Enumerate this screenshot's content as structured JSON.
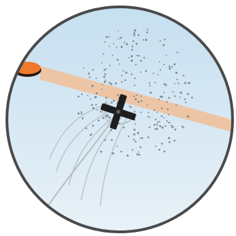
{
  "scene": {
    "colors": {
      "background": "#ffffff",
      "ring": "#4a4a4a",
      "sky_top": "#c6dff0",
      "sky_bottom": "#e8f1f7",
      "beam": "#efc19c",
      "saucer_orange": "#ef7a2b",
      "saucer_rim": "#2a1a10",
      "debris": "#7c8a93",
      "rotor": "#1e1e1e",
      "rotor_hub": "#5a5a5a",
      "trail": "#b7c2c9",
      "rope": "#b9b9b9"
    },
    "icons": {
      "saucer": "saucer-icon",
      "rotor": "rotor-icon"
    }
  }
}
